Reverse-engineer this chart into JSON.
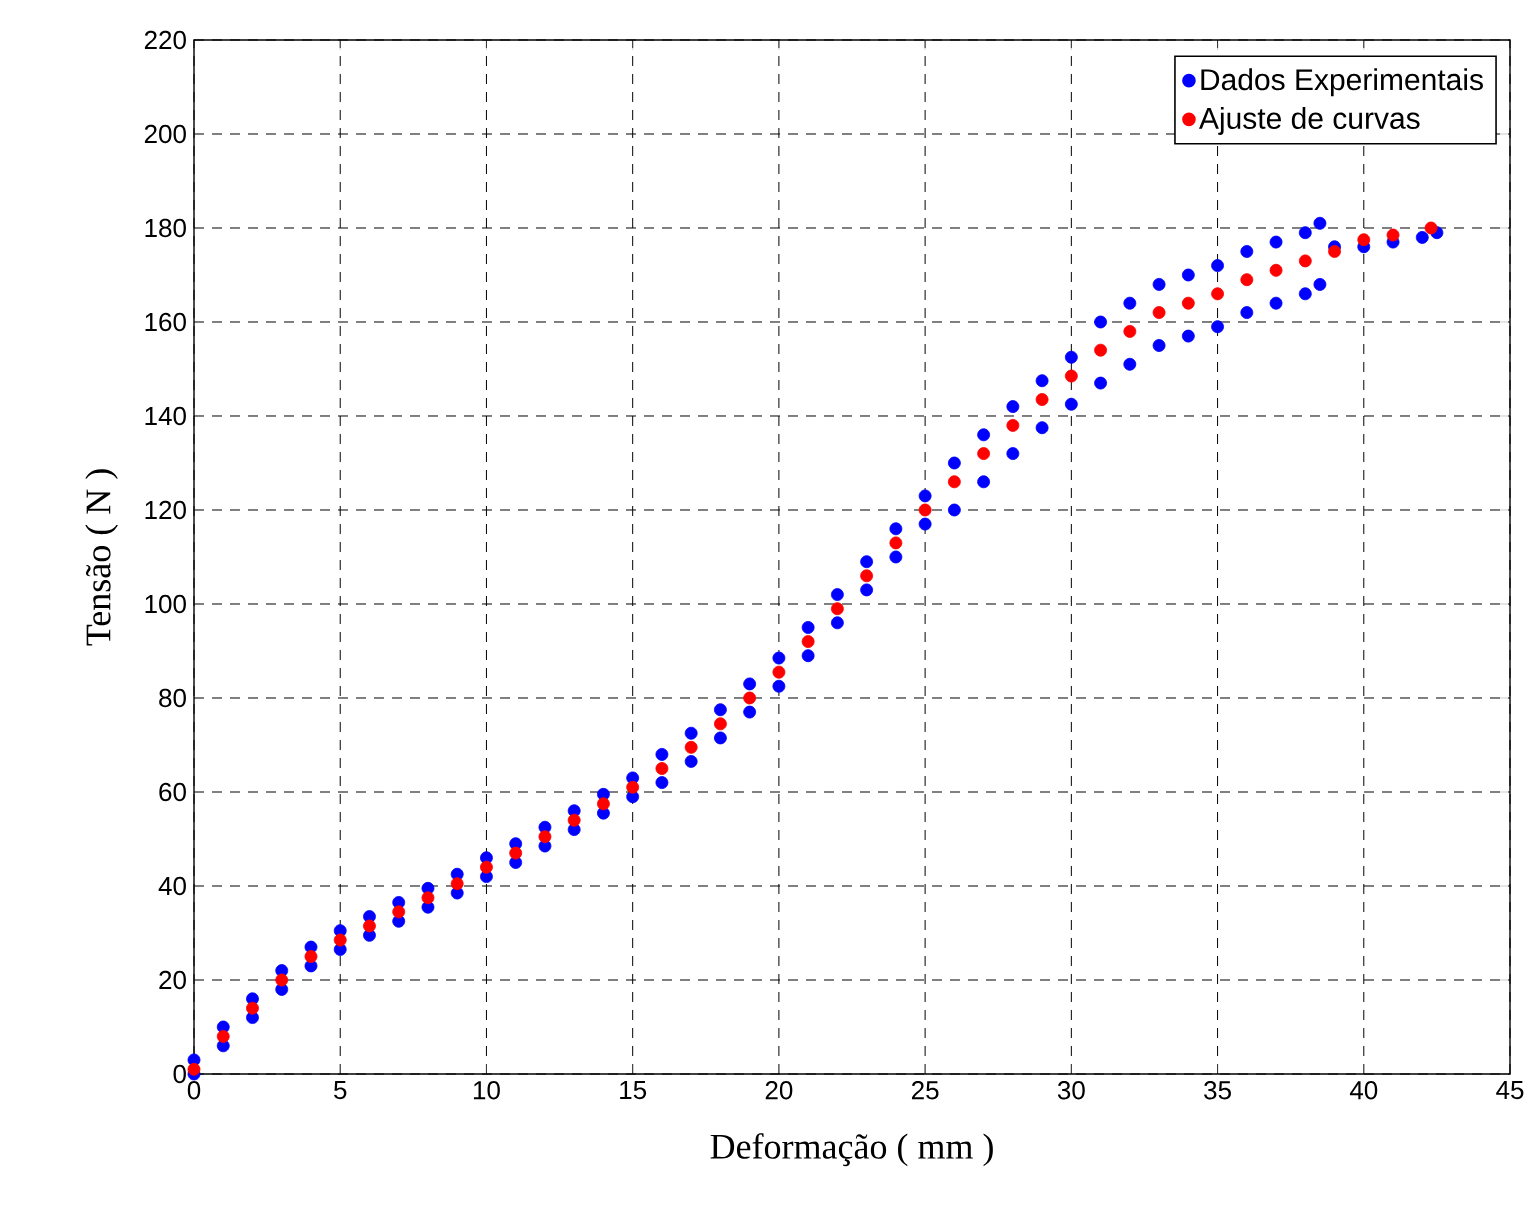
{
  "chart_data": {
    "type": "scatter",
    "xlabel": "Deformação ( mm )",
    "ylabel": "Tensão ( N )",
    "xlim": [
      0,
      45
    ],
    "xticks": [
      0,
      5,
      10,
      15,
      20,
      25,
      30,
      35,
      40,
      45
    ],
    "ylim": [
      0,
      220
    ],
    "yticks": [
      0,
      20,
      40,
      60,
      80,
      100,
      120,
      140,
      160,
      180,
      200,
      220
    ],
    "grid": true,
    "legend": "top right",
    "series": [
      {
        "name": "Dados Experimentais",
        "color": "#0000ff",
        "x": [
          0,
          0,
          1,
          1,
          2,
          2,
          3,
          3,
          4,
          4,
          5,
          5,
          6,
          6,
          7,
          7,
          8,
          8,
          9,
          9,
          10,
          10,
          11,
          11,
          12,
          12,
          13,
          13,
          14,
          14,
          15,
          15,
          16,
          16,
          17,
          17,
          18,
          18,
          19,
          19,
          20,
          20,
          21,
          21,
          22,
          22,
          23,
          23,
          24,
          24,
          25,
          25,
          26,
          26,
          27,
          27,
          28,
          28,
          29,
          29,
          30,
          30,
          31,
          31,
          32,
          32,
          33,
          33,
          34,
          34,
          35,
          35,
          36,
          36,
          37,
          37,
          38,
          38,
          38.5,
          38.5,
          39,
          40,
          41,
          42,
          42.5
        ],
        "values": [
          3,
          0,
          10,
          6,
          16,
          12,
          22,
          18,
          27,
          23,
          30.5,
          26.5,
          33.5,
          29.5,
          36.5,
          32.5,
          39.5,
          35.5,
          42.5,
          38.5,
          46,
          42,
          49,
          45,
          52.5,
          48.5,
          56,
          52,
          59.5,
          55.5,
          63,
          59,
          68,
          62,
          72.5,
          66.5,
          77.5,
          71.5,
          83,
          77,
          88.5,
          82.5,
          95,
          89,
          102,
          96,
          109,
          103,
          116,
          110,
          123,
          117,
          130,
          120,
          136,
          126,
          142,
          132,
          147.5,
          137.5,
          152.5,
          142.5,
          160,
          147,
          164,
          151,
          168,
          155,
          170,
          157,
          172,
          159,
          175,
          162,
          177,
          164,
          179,
          166,
          181,
          168,
          176,
          176,
          177,
          178,
          179
        ]
      },
      {
        "name": "Ajuste de curvas",
        "color": "#ff0000",
        "x": [
          0,
          1,
          2,
          3,
          4,
          5,
          6,
          7,
          8,
          9,
          10,
          11,
          12,
          13,
          14,
          15,
          16,
          17,
          18,
          19,
          20,
          21,
          22,
          23,
          24,
          25,
          26,
          27,
          28,
          29,
          30,
          31,
          32,
          33,
          34,
          35,
          36,
          37,
          38,
          39,
          40,
          41,
          42.3
        ],
        "values": [
          1,
          8,
          14,
          20,
          25,
          28.5,
          31.5,
          34.5,
          37.5,
          40.5,
          44,
          47,
          50.5,
          54,
          57.5,
          61,
          65,
          69.5,
          74.5,
          80,
          85.5,
          92,
          99,
          106,
          113,
          120,
          126,
          132,
          138,
          143.5,
          148.5,
          154,
          158,
          162,
          164,
          166,
          169,
          171,
          173,
          175,
          177.5,
          178.5,
          180
        ]
      }
    ]
  }
}
